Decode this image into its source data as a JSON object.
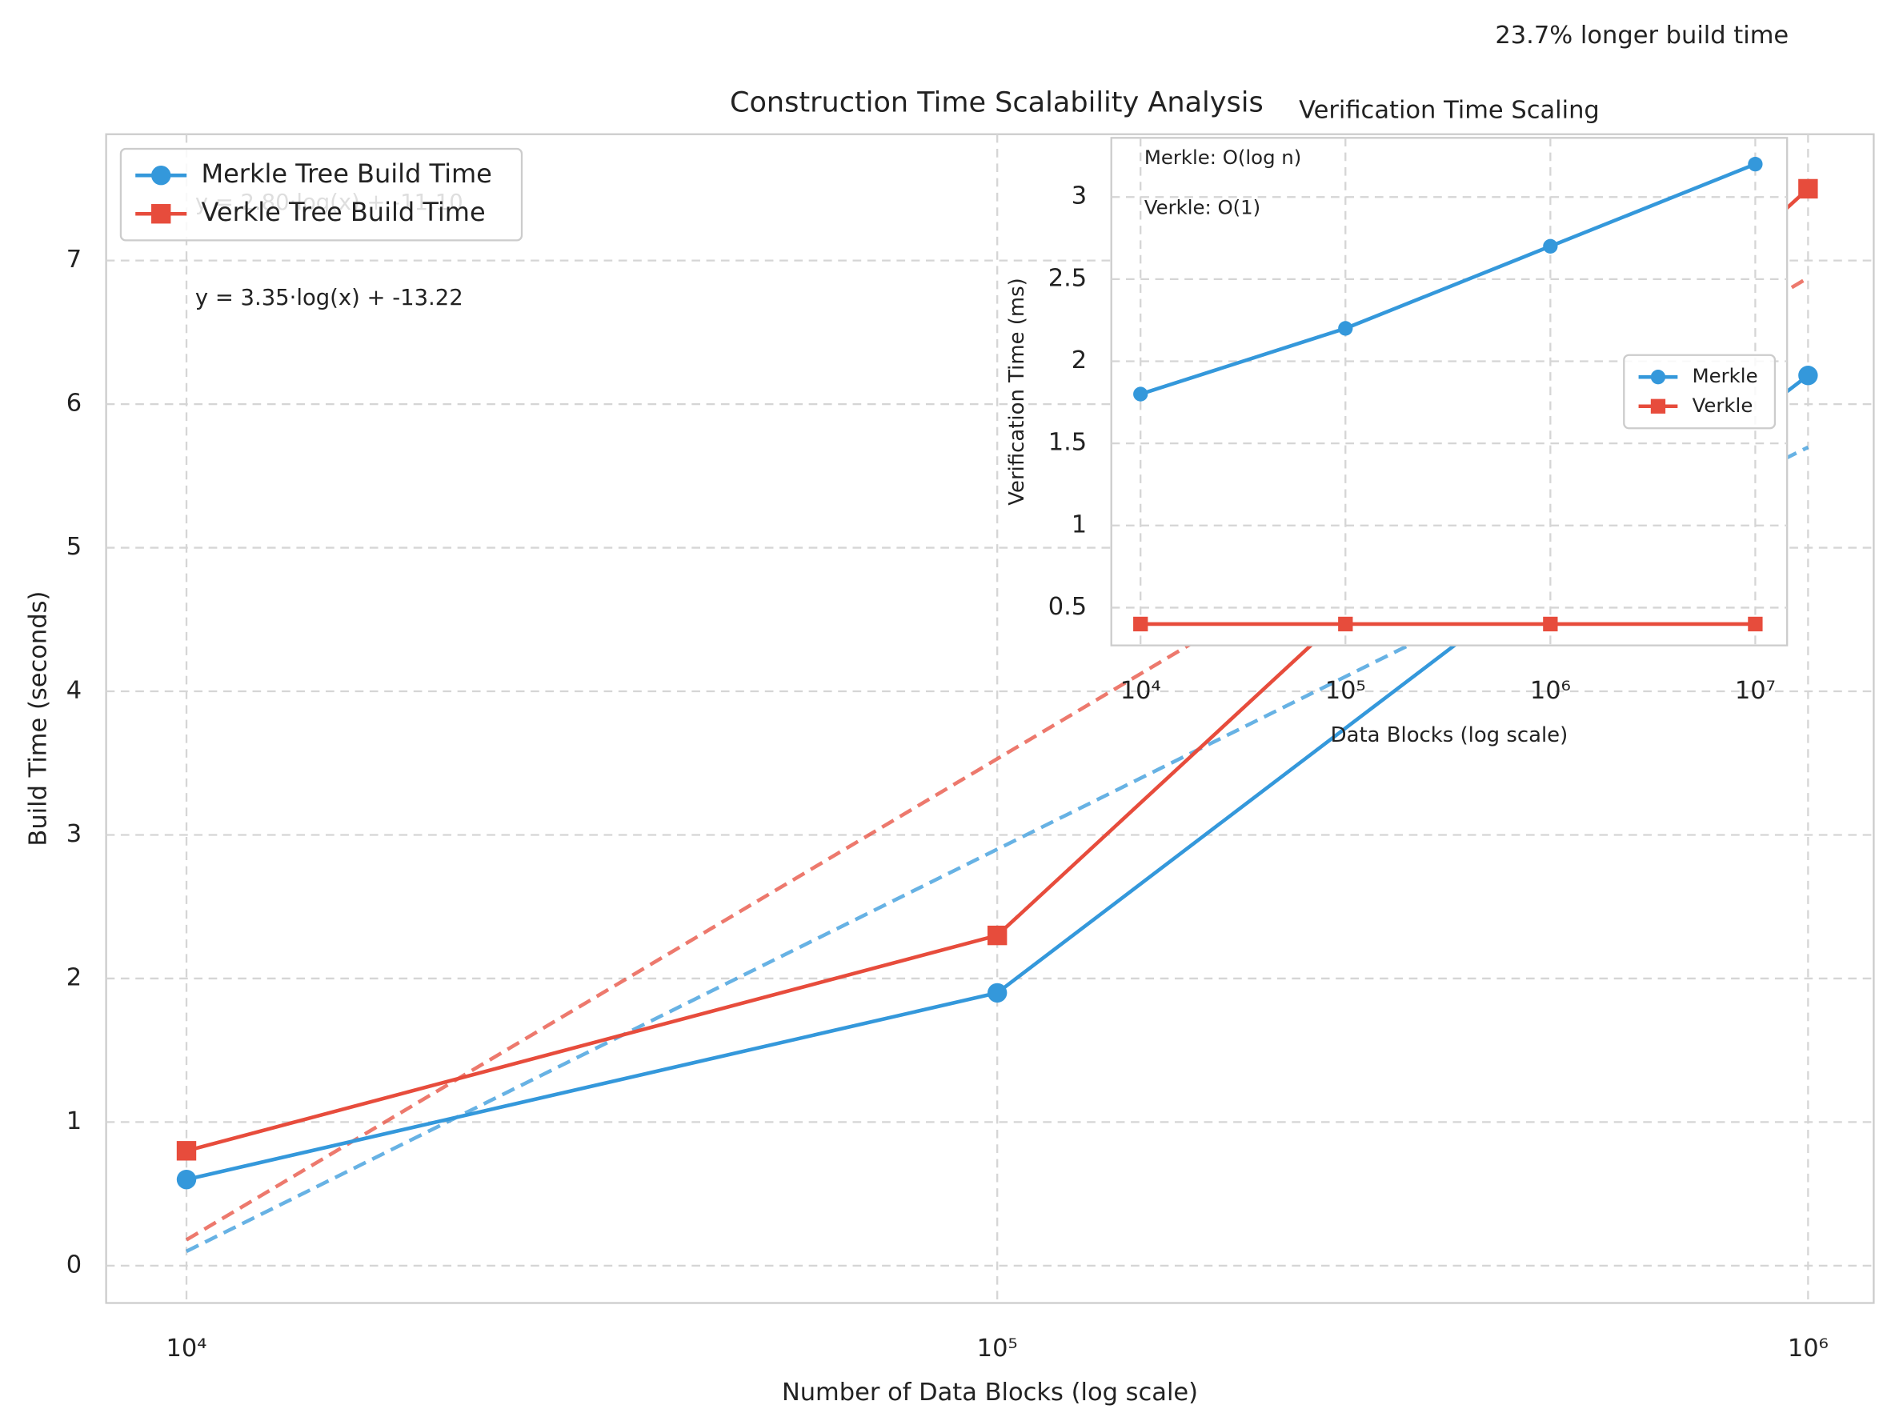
{
  "chart_data": [
    {
      "type": "line",
      "title": "Construction Time Scalability Analysis",
      "xlabel": "Number of Data Blocks (log scale)",
      "ylabel": "Build Time (seconds)",
      "xscale": "log",
      "grid": true,
      "legend": "upper left",
      "x": [
        10000,
        100000,
        500000,
        1000000
      ],
      "series": [
        {
          "name": "Merkle Tree Build Time",
          "color": "#3498db",
          "marker": "circle",
          "values": [
            0.6,
            1.9,
            4.9,
            6.2
          ]
        },
        {
          "name": "Verkle Tree Build Time",
          "color": "#e74c3c",
          "marker": "square",
          "values": [
            0.8,
            2.3,
            5.95,
            7.5
          ]
        }
      ],
      "fits": [
        {
          "color": "#3498db",
          "x": [
            10000,
            1000000
          ],
          "values": [
            0.1,
            5.7
          ],
          "label": "y = 2.80·log(x) + -11.10"
        },
        {
          "color": "#e74c3c",
          "x": [
            10000,
            1000000
          ],
          "values": [
            0.18,
            6.88
          ],
          "label": "y = 3.35·log(x) + -13.22"
        }
      ],
      "annotations": [
        {
          "text": "23.7% longer build time",
          "color": "#222222"
        }
      ],
      "xlim": [
        7960,
        1205000
      ],
      "ylim": [
        -0.26,
        7.88
      ],
      "xticks": [
        {
          "value": 10000,
          "label": "10⁴"
        },
        {
          "value": 100000,
          "label": "10⁵"
        },
        {
          "value": 1000000,
          "label": "10⁶"
        }
      ],
      "yticks": [
        0,
        1,
        2,
        3,
        4,
        5,
        6,
        7
      ]
    },
    {
      "type": "line",
      "title": "Verification Time Scaling",
      "xlabel": "Data Blocks (log scale)",
      "ylabel": "Verification Time (ms)",
      "xscale": "log",
      "grid": true,
      "legend": "center right",
      "x": [
        10000,
        100000,
        1000000,
        10000000
      ],
      "series": [
        {
          "name": "Merkle",
          "color": "#3498db",
          "marker": "circle",
          "values": [
            1.8,
            2.2,
            2.7,
            3.2
          ]
        },
        {
          "name": "Verkle",
          "color": "#e74c3c",
          "marker": "square",
          "values": [
            0.4,
            0.4,
            0.4,
            0.4
          ]
        }
      ],
      "annotations": [
        {
          "text": "Merkle: O(log n)",
          "color": "#3498db"
        },
        {
          "text": "Verkle: O(1)",
          "color": "#e74c3c"
        }
      ],
      "xlim": [
        7200,
        14300000
      ],
      "ylim": [
        0.27,
        3.36
      ],
      "xticks": [
        {
          "value": 10000,
          "label": "10⁴"
        },
        {
          "value": 100000,
          "label": "10⁵"
        },
        {
          "value": 1000000,
          "label": "10⁶"
        },
        {
          "value": 10000000,
          "label": "10⁷"
        }
      ],
      "yticks": [
        0.5,
        1.0,
        1.5,
        2.0,
        2.5,
        3.0
      ]
    }
  ]
}
